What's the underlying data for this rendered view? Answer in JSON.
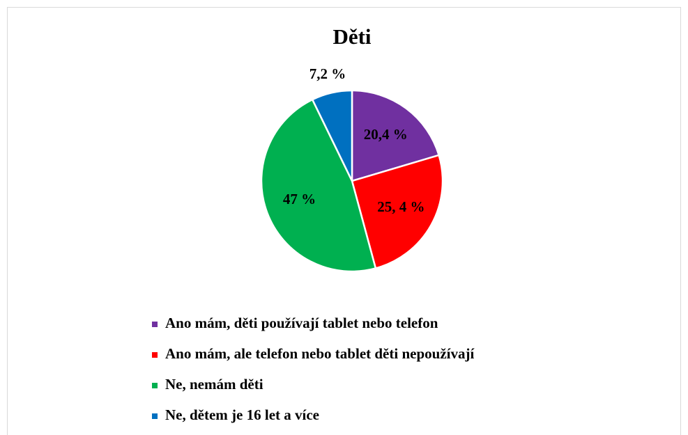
{
  "chart_data": {
    "type": "pie",
    "title": "Děti",
    "categories": [
      "Ano mám, děti používají tablet nebo telefon",
      "Ano mám, ale telefon nebo tablet děti nepoužívají",
      "Ne, nemám děti",
      "Ne, dětem je 16 let a více"
    ],
    "values": [
      20.4,
      25.4,
      47,
      7.2
    ],
    "value_labels": [
      "20,4 %",
      "25, 4 %",
      "47 %",
      "7,2 %"
    ],
    "colors": [
      "#7030a0",
      "#ff0000",
      "#00b050",
      "#0070c0"
    ],
    "legend": "bottom"
  }
}
